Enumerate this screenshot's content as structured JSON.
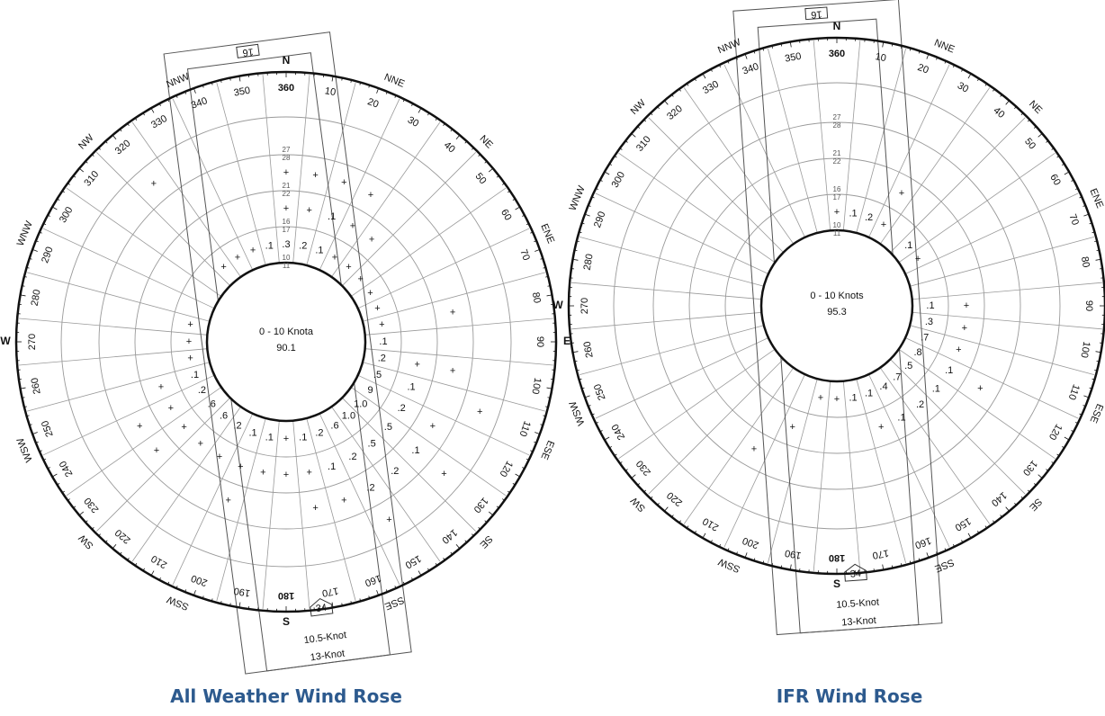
{
  "roses": [
    {
      "caption": "All Weather Wind Rose",
      "center_label": "0 - 10 Knota",
      "center_value": "90.1",
      "runway_label": "16",
      "runway_label_opposite": "34",
      "crosswind_inner": "10.5-Knot",
      "crosswind_outer": "13-Knot",
      "ring_labels": [
        "10",
        "11",
        "16",
        "17",
        "21",
        "22",
        "27",
        "28"
      ],
      "values": [
        {
          "dir": 20,
          "ring": 0,
          "text": ".1"
        },
        {
          "dir": 10,
          "ring": 0,
          "text": ".2"
        },
        {
          "dir": 0,
          "ring": 0,
          "text": ".3"
        },
        {
          "dir": 350,
          "ring": 0,
          "text": ".1"
        },
        {
          "dir": 340,
          "ring": 0,
          "text": "+"
        },
        {
          "dir": 330,
          "ring": 0,
          "text": "+"
        },
        {
          "dir": 320,
          "ring": 0,
          "text": "+"
        },
        {
          "dir": 30,
          "ring": 0,
          "text": "+"
        },
        {
          "dir": 40,
          "ring": 0,
          "text": "+"
        },
        {
          "dir": 50,
          "ring": 0,
          "text": "+"
        },
        {
          "dir": 60,
          "ring": 0,
          "text": "+"
        },
        {
          "dir": 70,
          "ring": 0,
          "text": "+"
        },
        {
          "dir": 80,
          "ring": 0,
          "text": "+"
        },
        {
          "dir": 90,
          "ring": 0,
          "text": ".1"
        },
        {
          "dir": 100,
          "ring": 0,
          "text": ".2"
        },
        {
          "dir": 110,
          "ring": 0,
          "text": ".5"
        },
        {
          "dir": 120,
          "ring": 0,
          "text": "9"
        },
        {
          "dir": 130,
          "ring": 0,
          "text": "1.0"
        },
        {
          "dir": 140,
          "ring": 0,
          "text": "1.0"
        },
        {
          "dir": 150,
          "ring": 0,
          "text": ".6"
        },
        {
          "dir": 160,
          "ring": 0,
          "text": ".2"
        },
        {
          "dir": 170,
          "ring": 0,
          "text": ".1"
        },
        {
          "dir": 180,
          "ring": 0,
          "text": "+"
        },
        {
          "dir": 190,
          "ring": 0,
          "text": ".1"
        },
        {
          "dir": 200,
          "ring": 0,
          "text": ".1"
        },
        {
          "dir": 210,
          "ring": 0,
          "text": ".2"
        },
        {
          "dir": 220,
          "ring": 0,
          "text": ".6"
        },
        {
          "dir": 230,
          "ring": 0,
          "text": ".6"
        },
        {
          "dir": 240,
          "ring": 0,
          "text": ".2"
        },
        {
          "dir": 250,
          "ring": 0,
          "text": ".1"
        },
        {
          "dir": 260,
          "ring": 0,
          "text": "+"
        },
        {
          "dir": 270,
          "ring": 0,
          "text": "+"
        },
        {
          "dir": 280,
          "ring": 0,
          "text": "+"
        },
        {
          "dir": 0,
          "ring": 1,
          "text": "+"
        },
        {
          "dir": 10,
          "ring": 1,
          "text": "+"
        },
        {
          "dir": 20,
          "ring": 1,
          "text": ".1"
        },
        {
          "dir": 30,
          "ring": 1,
          "text": "+"
        },
        {
          "dir": 40,
          "ring": 1,
          "text": "+"
        },
        {
          "dir": 100,
          "ring": 1,
          "text": "+"
        },
        {
          "dir": 110,
          "ring": 1,
          "text": ".1"
        },
        {
          "dir": 120,
          "ring": 1,
          "text": ".2"
        },
        {
          "dir": 130,
          "ring": 1,
          "text": ".5"
        },
        {
          "dir": 140,
          "ring": 1,
          "text": ".5"
        },
        {
          "dir": 150,
          "ring": 1,
          "text": ".2"
        },
        {
          "dir": 160,
          "ring": 1,
          "text": ".1"
        },
        {
          "dir": 170,
          "ring": 1,
          "text": "+"
        },
        {
          "dir": 180,
          "ring": 1,
          "text": "+"
        },
        {
          "dir": 190,
          "ring": 1,
          "text": "+"
        },
        {
          "dir": 200,
          "ring": 1,
          "text": "+"
        },
        {
          "dir": 210,
          "ring": 1,
          "text": "+"
        },
        {
          "dir": 220,
          "ring": 1,
          "text": "+"
        },
        {
          "dir": 230,
          "ring": 1,
          "text": "+"
        },
        {
          "dir": 240,
          "ring": 1,
          "text": "+"
        },
        {
          "dir": 250,
          "ring": 1,
          "text": "+"
        },
        {
          "dir": 0,
          "ring": 2,
          "text": "+"
        },
        {
          "dir": 10,
          "ring": 2,
          "text": "+"
        },
        {
          "dir": 20,
          "ring": 2,
          "text": "+"
        },
        {
          "dir": 30,
          "ring": 2,
          "text": "+"
        },
        {
          "dir": 80,
          "ring": 2,
          "text": "+"
        },
        {
          "dir": 100,
          "ring": 2,
          "text": "+"
        },
        {
          "dir": 120,
          "ring": 2,
          "text": "+"
        },
        {
          "dir": 130,
          "ring": 2,
          "text": ".1"
        },
        {
          "dir": 140,
          "ring": 2,
          "text": ".2"
        },
        {
          "dir": 150,
          "ring": 2,
          "text": ".2"
        },
        {
          "dir": 160,
          "ring": 2,
          "text": "+"
        },
        {
          "dir": 170,
          "ring": 2,
          "text": "+"
        },
        {
          "dir": 200,
          "ring": 2,
          "text": "+"
        },
        {
          "dir": 230,
          "ring": 2,
          "text": "+"
        },
        {
          "dir": 240,
          "ring": 2,
          "text": "+"
        },
        {
          "dir": 110,
          "ring": 3,
          "text": "+"
        },
        {
          "dir": 130,
          "ring": 3,
          "text": "+"
        },
        {
          "dir": 150,
          "ring": 3,
          "text": "+"
        },
        {
          "dir": 320,
          "ring": 3,
          "text": "+"
        }
      ]
    },
    {
      "caption": "IFR Wind Rose",
      "center_label": "0 - 10 Knots",
      "center_value": "95.3",
      "runway_label": "16",
      "runway_label_opposite": "34",
      "crosswind_inner": "10.5-Knot",
      "crosswind_outer": "13-Knot",
      "ring_labels": [
        "10",
        "11",
        "16",
        "17",
        "21",
        "22",
        "27",
        "28"
      ],
      "values": [
        {
          "dir": 0,
          "ring": 0,
          "text": "+"
        },
        {
          "dir": 10,
          "ring": 0,
          "text": ".1"
        },
        {
          "dir": 20,
          "ring": 0,
          "text": ".2"
        },
        {
          "dir": 30,
          "ring": 0,
          "text": "+"
        },
        {
          "dir": 50,
          "ring": 0,
          "text": ".1"
        },
        {
          "dir": 60,
          "ring": 0,
          "text": "+"
        },
        {
          "dir": 90,
          "ring": 0,
          "text": ".1"
        },
        {
          "dir": 100,
          "ring": 0,
          "text": ".3"
        },
        {
          "dir": 110,
          "ring": 0,
          "text": ".7"
        },
        {
          "dir": 120,
          "ring": 0,
          "text": ".8"
        },
        {
          "dir": 130,
          "ring": 0,
          "text": ".5"
        },
        {
          "dir": 140,
          "ring": 0,
          "text": ".7"
        },
        {
          "dir": 150,
          "ring": 0,
          "text": ".4"
        },
        {
          "dir": 160,
          "ring": 0,
          "text": ".1"
        },
        {
          "dir": 170,
          "ring": 0,
          "text": ".1"
        },
        {
          "dir": 180,
          "ring": 0,
          "text": "+"
        },
        {
          "dir": 190,
          "ring": 0,
          "text": "+"
        },
        {
          "dir": 30,
          "ring": 1,
          "text": "+"
        },
        {
          "dir": 90,
          "ring": 1,
          "text": "+"
        },
        {
          "dir": 100,
          "ring": 1,
          "text": "+"
        },
        {
          "dir": 110,
          "ring": 1,
          "text": "+"
        },
        {
          "dir": 120,
          "ring": 1,
          "text": ".1"
        },
        {
          "dir": 130,
          "ring": 1,
          "text": ".1"
        },
        {
          "dir": 140,
          "ring": 1,
          "text": ".2"
        },
        {
          "dir": 150,
          "ring": 1,
          "text": ".1"
        },
        {
          "dir": 160,
          "ring": 1,
          "text": "+"
        },
        {
          "dir": 200,
          "ring": 1,
          "text": "+"
        },
        {
          "dir": 120,
          "ring": 2,
          "text": "+"
        },
        {
          "dir": 210,
          "ring": 2,
          "text": "+"
        }
      ]
    }
  ],
  "cardinal_labels": [
    "N",
    "NNE",
    "NE",
    "ENE",
    "E",
    "ESE",
    "SE",
    "SSE",
    "S",
    "SSW",
    "SW",
    "WSW",
    "W",
    "WNW",
    "NW",
    "NNW"
  ],
  "degree_labels": [
    "360",
    "10",
    "20",
    "30",
    "40",
    "50",
    "60",
    "70",
    "80",
    "90",
    "100",
    "110",
    "120",
    "130",
    "140",
    "150",
    "160",
    "170",
    "180",
    "190",
    "200",
    "210",
    "220",
    "230",
    "240",
    "250",
    "260",
    "270",
    "280",
    "290",
    "300",
    "310",
    "320",
    "330",
    "340",
    "350"
  ],
  "colors": {
    "caption": "#2d5a8e",
    "grid": "#9a9a9a",
    "outline": "#111111",
    "text": "#111111"
  }
}
